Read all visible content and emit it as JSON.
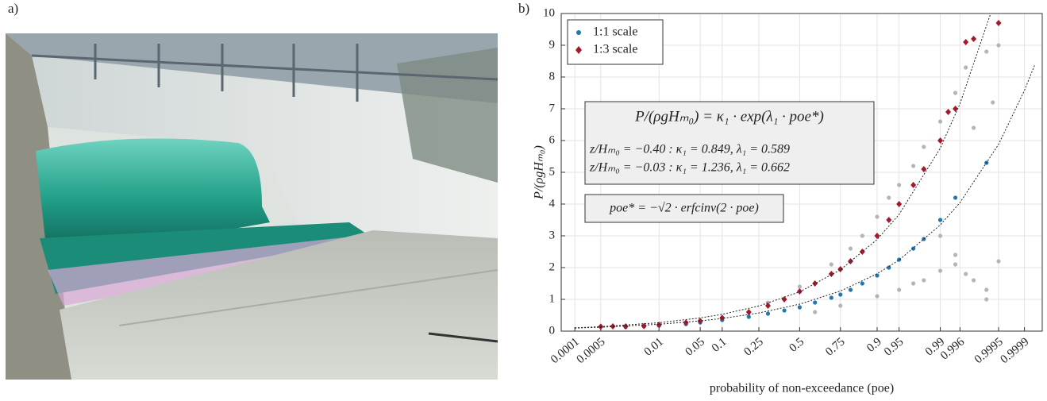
{
  "panel_labels": [
    "a)",
    "b)"
  ],
  "chart_data": {
    "type": "scatter",
    "x_scale": "probit",
    "xlabel": "probability of non-exceedance (poe)",
    "ylabel": "P/(ρgHₘ₀)",
    "xlim": [
      4e-05,
      0.99997
    ],
    "ylim": [
      0,
      10
    ],
    "xticks": [
      0.0001,
      0.0005,
      0.01,
      0.05,
      0.1,
      0.25,
      0.5,
      0.75,
      0.9,
      0.95,
      0.99,
      0.996,
      0.9995,
      0.9999
    ],
    "yticks": [
      0,
      1,
      2,
      3,
      4,
      5,
      6,
      7,
      8,
      9,
      10
    ],
    "grid": true,
    "legend": "upper left",
    "series": [
      {
        "color": "#b5b5b5",
        "marker": "dot",
        "x": [
          0.3,
          0.5,
          0.7,
          0.8,
          0.85,
          0.9,
          0.93,
          0.95,
          0.97,
          0.98,
          0.99,
          0.99,
          0.995,
          0.995,
          0.997,
          0.997,
          0.998,
          0.999,
          0.999,
          0.9993,
          0.9995,
          0.9995,
          0.6,
          0.75,
          0.9,
          0.95,
          0.97,
          0.98,
          0.99,
          0.995,
          0.998,
          0.999
        ],
        "values": [
          0.9,
          1.4,
          2.1,
          2.6,
          3.0,
          3.6,
          4.2,
          4.6,
          5.2,
          5.8,
          6.6,
          3.0,
          7.5,
          2.4,
          8.3,
          1.8,
          6.4,
          8.8,
          1.3,
          7.2,
          9.0,
          2.2,
          0.6,
          0.8,
          1.1,
          1.3,
          1.5,
          1.6,
          1.9,
          2.1,
          1.6,
          1.0
        ]
      },
      {
        "name": "1:1 scale",
        "color": "#1f77b4",
        "marker": "dot",
        "x": [
          0.002,
          0.005,
          0.01,
          0.03,
          0.05,
          0.1,
          0.2,
          0.3,
          0.4,
          0.5,
          0.6,
          0.7,
          0.75,
          0.8,
          0.85,
          0.9,
          0.93,
          0.95,
          0.97,
          0.98,
          0.99,
          0.995,
          0.999
        ],
        "values": [
          0.13,
          0.15,
          0.17,
          0.22,
          0.27,
          0.35,
          0.45,
          0.55,
          0.65,
          0.75,
          0.9,
          1.05,
          1.15,
          1.3,
          1.5,
          1.75,
          2.0,
          2.25,
          2.6,
          2.9,
          3.5,
          4.2,
          5.3
        ]
      },
      {
        "name": "1:3 scale",
        "color": "#a3192b",
        "marker": "diamond",
        "x": [
          0.0005,
          0.001,
          0.002,
          0.005,
          0.01,
          0.03,
          0.05,
          0.1,
          0.2,
          0.3,
          0.4,
          0.5,
          0.6,
          0.7,
          0.75,
          0.8,
          0.85,
          0.9,
          0.93,
          0.95,
          0.97,
          0.98,
          0.99,
          0.993,
          0.995,
          0.997,
          0.998,
          0.9995
        ],
        "values": [
          0.14,
          0.15,
          0.15,
          0.16,
          0.2,
          0.27,
          0.32,
          0.42,
          0.6,
          0.8,
          1.0,
          1.25,
          1.5,
          1.8,
          1.95,
          2.2,
          2.5,
          3.0,
          3.5,
          4.0,
          4.6,
          5.1,
          6.0,
          6.9,
          7.0,
          9.1,
          9.2,
          9.7
        ]
      }
    ],
    "fits": [
      {
        "color": "#222",
        "x": [
          0.0001,
          0.0005,
          0.01,
          0.05,
          0.1,
          0.25,
          0.5,
          0.75,
          0.9,
          0.95,
          0.99,
          0.996,
          0.9992
        ],
        "values": [
          0.105,
          0.14,
          0.265,
          0.416,
          0.529,
          0.791,
          1.236,
          1.931,
          2.887,
          3.673,
          5.76,
          7.16,
          9.98
        ]
      },
      {
        "color": "#222",
        "x": [
          0.0001,
          0.0005,
          0.01,
          0.05,
          0.1,
          0.25,
          0.5,
          0.75,
          0.9,
          0.95,
          0.99,
          0.996,
          0.9995,
          0.9999,
          0.99995
        ],
        "values": [
          0.095,
          0.122,
          0.216,
          0.322,
          0.399,
          0.571,
          0.849,
          1.263,
          1.807,
          2.236,
          3.343,
          4.046,
          5.88,
          7.58,
          8.39
        ]
      }
    ],
    "annotations": [
      "P/(ρgHₘ₀) = κ₁ · exp(λ₁ · poe*)",
      "z/Hₘ₀ = −0.40 : κ₁ = 0.849, λ₁ = 0.589",
      "z/Hₘ₀ = −0.03 : κ₁ = 1.236, λ₁ = 0.662",
      "poe* = −√2 · erfcinv(2 · poe)"
    ]
  }
}
